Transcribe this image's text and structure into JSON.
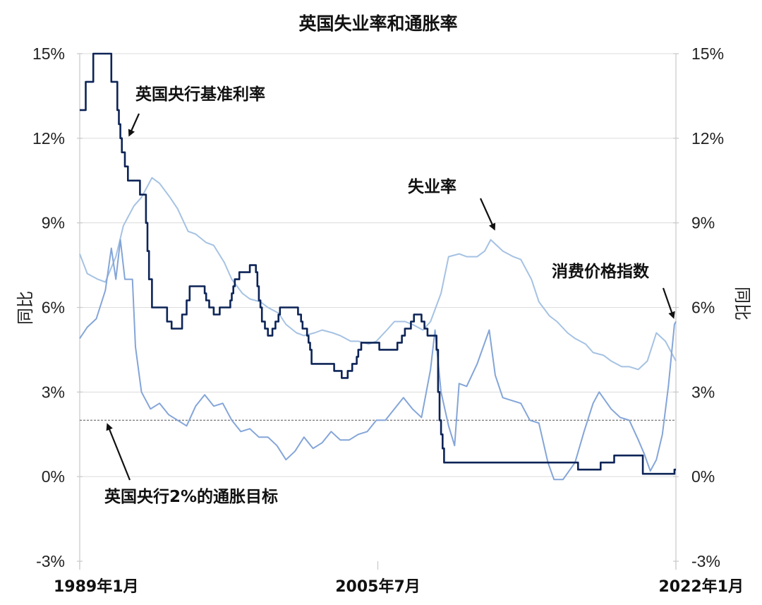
{
  "chart_data": {
    "type": "line",
    "title": "英国失业率和通胀率",
    "ylabel_left": "同比",
    "ylabel_right": "同比",
    "ylim": [
      -3,
      15
    ],
    "yticks": [
      15,
      12,
      9,
      6,
      3,
      0,
      -3
    ],
    "ytick_labels": [
      "15%",
      "12%",
      "9%",
      "6%",
      "3%",
      "0%",
      "-3%"
    ],
    "xlim": [
      "1989-01",
      "2022-01"
    ],
    "xtick_labels": [
      {
        "date": "1989-01",
        "label": "1989年1月"
      },
      {
        "date": "2005-07",
        "label": "2005年7月"
      },
      {
        "date": "2022-01",
        "label": "2022年1月"
      }
    ],
    "grid": true,
    "target_line": {
      "value": 2,
      "label": "英国央行2%的通胀目标"
    },
    "annotations": [
      {
        "text": "英国央行基准利率",
        "series": "policy_rate"
      },
      {
        "text": "失业率",
        "series": "unemployment"
      },
      {
        "text": "消费价格指数",
        "series": "cpi"
      }
    ],
    "series": [
      {
        "key": "policy_rate",
        "name": "英国央行基准利率",
        "color": "#0d2457",
        "step": true,
        "points": [
          [
            "1989-01",
            13
          ],
          [
            "1989-05",
            14
          ],
          [
            "1989-10",
            15
          ],
          [
            "1990-10",
            14
          ],
          [
            "1991-02",
            13
          ],
          [
            "1991-03",
            12.5
          ],
          [
            "1991-04",
            12
          ],
          [
            "1991-05",
            11.5
          ],
          [
            "1991-07",
            11
          ],
          [
            "1991-09",
            10.5
          ],
          [
            "1992-05",
            10
          ],
          [
            "1992-09",
            9
          ],
          [
            "1992-10",
            8
          ],
          [
            "1992-11",
            7
          ],
          [
            "1993-01",
            6
          ],
          [
            "1993-11",
            5.5
          ],
          [
            "1994-02",
            5.25
          ],
          [
            "1994-09",
            5.75
          ],
          [
            "1994-12",
            6.25
          ],
          [
            "1995-02",
            6.75
          ],
          [
            "1995-12",
            6.5
          ],
          [
            "1996-01",
            6.25
          ],
          [
            "1996-03",
            6
          ],
          [
            "1996-06",
            5.75
          ],
          [
            "1996-10",
            6
          ],
          [
            "1997-05",
            6.25
          ],
          [
            "1997-06",
            6.5
          ],
          [
            "1997-07",
            6.75
          ],
          [
            "1997-08",
            7
          ],
          [
            "1997-11",
            7.25
          ],
          [
            "1998-06",
            7.5
          ],
          [
            "1998-10",
            7.25
          ],
          [
            "1998-11",
            6.75
          ],
          [
            "1998-12",
            6.25
          ],
          [
            "1999-01",
            6
          ],
          [
            "1999-02",
            5.5
          ],
          [
            "1999-04",
            5.25
          ],
          [
            "1999-06",
            5
          ],
          [
            "1999-09",
            5.25
          ],
          [
            "1999-11",
            5.5
          ],
          [
            "2000-01",
            5.75
          ],
          [
            "2000-02",
            6
          ],
          [
            "2001-02",
            5.75
          ],
          [
            "2001-04",
            5.5
          ],
          [
            "2001-05",
            5.25
          ],
          [
            "2001-08",
            5
          ],
          [
            "2001-09",
            4.75
          ],
          [
            "2001-10",
            4.5
          ],
          [
            "2001-11",
            4
          ],
          [
            "2003-02",
            3.75
          ],
          [
            "2003-07",
            3.5
          ],
          [
            "2003-11",
            3.75
          ],
          [
            "2004-02",
            4
          ],
          [
            "2004-05",
            4.25
          ],
          [
            "2004-06",
            4.5
          ],
          [
            "2004-08",
            4.75
          ],
          [
            "2005-08",
            4.5
          ],
          [
            "2006-08",
            4.75
          ],
          [
            "2006-11",
            5
          ],
          [
            "2007-01",
            5.25
          ],
          [
            "2007-05",
            5.5
          ],
          [
            "2007-07",
            5.75
          ],
          [
            "2007-12",
            5.5
          ],
          [
            "2008-02",
            5.25
          ],
          [
            "2008-04",
            5
          ],
          [
            "2008-10",
            4.5
          ],
          [
            "2008-11",
            3
          ],
          [
            "2008-12",
            2
          ],
          [
            "2009-01",
            1.5
          ],
          [
            "2009-02",
            1
          ],
          [
            "2009-03",
            0.5
          ],
          [
            "2016-08",
            0.25
          ],
          [
            "2017-11",
            0.5
          ],
          [
            "2018-08",
            0.75
          ],
          [
            "2020-03",
            0.1
          ],
          [
            "2021-12",
            0.25
          ],
          [
            "2022-01",
            0.25
          ]
        ]
      },
      {
        "key": "unemployment",
        "name": "失业率",
        "color": "#a5c2e3",
        "step": false,
        "points": [
          [
            "1989-01",
            7.9
          ],
          [
            "1989-06",
            7.2
          ],
          [
            "1990-01",
            7.0
          ],
          [
            "1990-06",
            6.9
          ],
          [
            "1991-01",
            7.8
          ],
          [
            "1991-06",
            8.9
          ],
          [
            "1992-01",
            9.6
          ],
          [
            "1992-06",
            9.9
          ],
          [
            "1993-01",
            10.6
          ],
          [
            "1993-06",
            10.4
          ],
          [
            "1994-01",
            9.9
          ],
          [
            "1994-06",
            9.5
          ],
          [
            "1995-01",
            8.7
          ],
          [
            "1995-06",
            8.6
          ],
          [
            "1996-01",
            8.3
          ],
          [
            "1996-06",
            8.2
          ],
          [
            "1997-01",
            7.6
          ],
          [
            "1997-06",
            7.0
          ],
          [
            "1998-01",
            6.5
          ],
          [
            "1998-06",
            6.3
          ],
          [
            "1999-01",
            6.2
          ],
          [
            "1999-06",
            6.0
          ],
          [
            "2000-01",
            5.8
          ],
          [
            "2000-06",
            5.4
          ],
          [
            "2001-01",
            5.1
          ],
          [
            "2001-06",
            5.0
          ],
          [
            "2002-01",
            5.1
          ],
          [
            "2002-06",
            5.2
          ],
          [
            "2003-01",
            5.1
          ],
          [
            "2003-06",
            5.0
          ],
          [
            "2004-01",
            4.8
          ],
          [
            "2004-06",
            4.8
          ],
          [
            "2005-01",
            4.7
          ],
          [
            "2005-06",
            4.8
          ],
          [
            "2006-01",
            5.2
          ],
          [
            "2006-06",
            5.5
          ],
          [
            "2007-01",
            5.5
          ],
          [
            "2007-06",
            5.4
          ],
          [
            "2008-01",
            5.2
          ],
          [
            "2008-06",
            5.5
          ],
          [
            "2009-01",
            6.5
          ],
          [
            "2009-06",
            7.8
          ],
          [
            "2010-01",
            7.9
          ],
          [
            "2010-06",
            7.8
          ],
          [
            "2011-01",
            7.8
          ],
          [
            "2011-06",
            8.0
          ],
          [
            "2011-10",
            8.4
          ],
          [
            "2012-06",
            8.0
          ],
          [
            "2013-01",
            7.8
          ],
          [
            "2013-06",
            7.7
          ],
          [
            "2014-01",
            7.0
          ],
          [
            "2014-06",
            6.2
          ],
          [
            "2015-01",
            5.7
          ],
          [
            "2015-06",
            5.5
          ],
          [
            "2016-01",
            5.1
          ],
          [
            "2016-06",
            4.9
          ],
          [
            "2017-01",
            4.7
          ],
          [
            "2017-06",
            4.4
          ],
          [
            "2018-01",
            4.3
          ],
          [
            "2018-06",
            4.1
          ],
          [
            "2019-01",
            3.9
          ],
          [
            "2019-06",
            3.9
          ],
          [
            "2019-12",
            3.8
          ],
          [
            "2020-06",
            4.1
          ],
          [
            "2020-12",
            5.1
          ],
          [
            "2021-06",
            4.8
          ],
          [
            "2022-01",
            4.1
          ]
        ]
      },
      {
        "key": "cpi",
        "name": "消费价格指数",
        "color": "#84a5d8",
        "step": false,
        "points": [
          [
            "1989-01",
            4.9
          ],
          [
            "1989-06",
            5.3
          ],
          [
            "1989-12",
            5.6
          ],
          [
            "1990-06",
            6.6
          ],
          [
            "1990-10",
            8.1
          ],
          [
            "1991-01",
            7.0
          ],
          [
            "1991-04",
            8.4
          ],
          [
            "1991-07",
            7.0
          ],
          [
            "1991-12",
            7.0
          ],
          [
            "1992-02",
            4.6
          ],
          [
            "1992-06",
            3.0
          ],
          [
            "1992-12",
            2.4
          ],
          [
            "1993-06",
            2.6
          ],
          [
            "1993-12",
            2.2
          ],
          [
            "1994-06",
            2.0
          ],
          [
            "1994-12",
            1.8
          ],
          [
            "1995-06",
            2.5
          ],
          [
            "1995-12",
            2.9
          ],
          [
            "1996-06",
            2.5
          ],
          [
            "1996-12",
            2.6
          ],
          [
            "1997-06",
            2.0
          ],
          [
            "1997-12",
            1.6
          ],
          [
            "1998-06",
            1.7
          ],
          [
            "1998-12",
            1.4
          ],
          [
            "1999-06",
            1.4
          ],
          [
            "1999-12",
            1.1
          ],
          [
            "2000-06",
            0.6
          ],
          [
            "2000-12",
            0.9
          ],
          [
            "2001-06",
            1.4
          ],
          [
            "2001-12",
            1.0
          ],
          [
            "2002-06",
            1.2
          ],
          [
            "2002-12",
            1.6
          ],
          [
            "2003-06",
            1.3
          ],
          [
            "2003-12",
            1.3
          ],
          [
            "2004-06",
            1.5
          ],
          [
            "2004-12",
            1.6
          ],
          [
            "2005-06",
            2.0
          ],
          [
            "2005-12",
            2.0
          ],
          [
            "2006-06",
            2.4
          ],
          [
            "2006-12",
            2.8
          ],
          [
            "2007-06",
            2.4
          ],
          [
            "2007-12",
            2.1
          ],
          [
            "2008-06",
            3.8
          ],
          [
            "2008-09",
            5.2
          ],
          [
            "2009-01",
            3.0
          ],
          [
            "2009-06",
            1.8
          ],
          [
            "2009-10",
            1.1
          ],
          [
            "2010-01",
            3.3
          ],
          [
            "2010-06",
            3.2
          ],
          [
            "2011-01",
            4.0
          ],
          [
            "2011-09",
            5.2
          ],
          [
            "2012-01",
            3.6
          ],
          [
            "2012-06",
            2.8
          ],
          [
            "2012-12",
            2.7
          ],
          [
            "2013-06",
            2.6
          ],
          [
            "2013-12",
            2.0
          ],
          [
            "2014-06",
            1.9
          ],
          [
            "2014-12",
            0.5
          ],
          [
            "2015-04",
            -0.1
          ],
          [
            "2015-10",
            -0.1
          ],
          [
            "2016-06",
            0.5
          ],
          [
            "2016-12",
            1.6
          ],
          [
            "2017-06",
            2.6
          ],
          [
            "2017-10",
            3.0
          ],
          [
            "2018-06",
            2.4
          ],
          [
            "2018-12",
            2.1
          ],
          [
            "2019-06",
            2.0
          ],
          [
            "2019-12",
            1.3
          ],
          [
            "2020-04",
            0.8
          ],
          [
            "2020-08",
            0.2
          ],
          [
            "2020-12",
            0.6
          ],
          [
            "2021-04",
            1.5
          ],
          [
            "2021-08",
            3.2
          ],
          [
            "2021-12",
            5.4
          ],
          [
            "2022-01",
            5.5
          ]
        ]
      }
    ]
  }
}
